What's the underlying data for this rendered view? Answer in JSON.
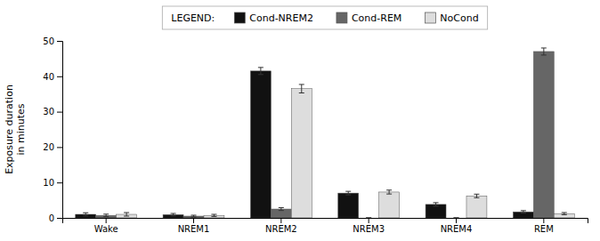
{
  "chart_data": {
    "type": "bar",
    "categories": [
      "Wake",
      "NREM1",
      "NREM2",
      "NREM3",
      "NREM4",
      "REM"
    ],
    "series": [
      {
        "name": "Cond-NREM2",
        "color": "#111111",
        "values": [
          1.0,
          0.9,
          41.5,
          7.0,
          3.8,
          1.7
        ],
        "errors": [
          0.45,
          0.35,
          1.0,
          0.5,
          0.5,
          0.35
        ]
      },
      {
        "name": "Cond-REM",
        "color": "#666666",
        "values": [
          0.7,
          0.5,
          2.5,
          0.0,
          0.0,
          47.0
        ],
        "errors": [
          0.35,
          0.25,
          0.4,
          0.0,
          0.0,
          1.0
        ]
      },
      {
        "name": "NoCond",
        "color": "#dddddd",
        "values": [
          1.0,
          0.7,
          36.5,
          7.3,
          6.2,
          1.2
        ],
        "errors": [
          0.5,
          0.3,
          1.2,
          0.55,
          0.5,
          0.3
        ]
      }
    ],
    "y_label": "Exposure duration\nin minutes",
    "ylim": [
      0,
      50
    ],
    "yticks": [
      0,
      10,
      20,
      30,
      40,
      50
    ],
    "grid": false,
    "legend": "top",
    "legend_title": "LEGEND:"
  }
}
